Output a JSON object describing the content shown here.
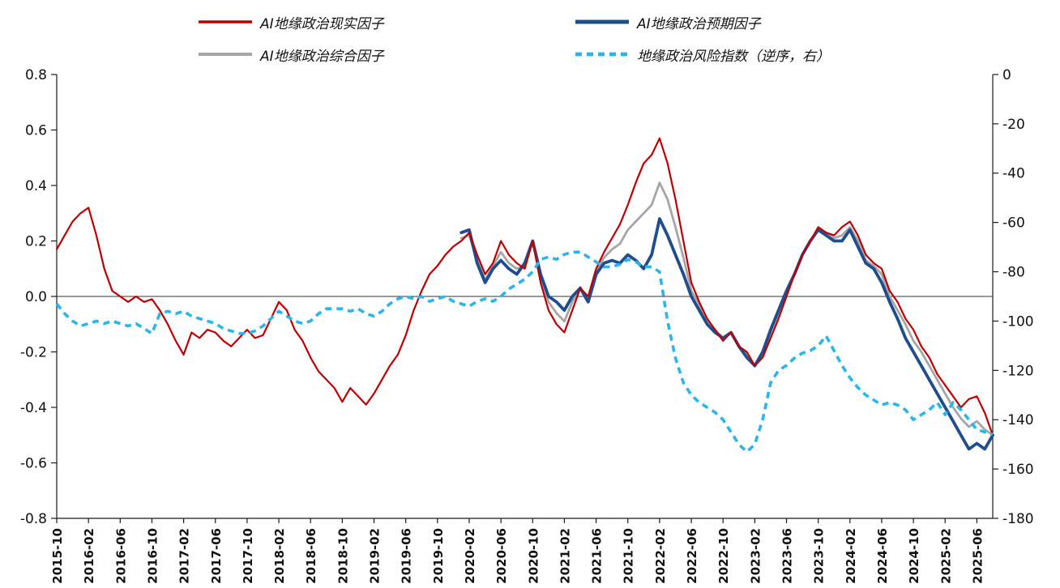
{
  "chart_data": {
    "type": "line",
    "title": "",
    "legend_position": "top",
    "grid": false,
    "legend_rows": [
      [
        0,
        1
      ],
      [
        2,
        3
      ]
    ],
    "x": [
      "2015-10",
      "2015-11",
      "2015-12",
      "2016-01",
      "2016-02",
      "2016-03",
      "2016-04",
      "2016-05",
      "2016-06",
      "2016-07",
      "2016-08",
      "2016-09",
      "2016-10",
      "2016-11",
      "2016-12",
      "2017-01",
      "2017-02",
      "2017-03",
      "2017-04",
      "2017-05",
      "2017-06",
      "2017-07",
      "2017-08",
      "2017-09",
      "2017-10",
      "2017-11",
      "2017-12",
      "2018-01",
      "2018-02",
      "2018-03",
      "2018-04",
      "2018-05",
      "2018-06",
      "2018-07",
      "2018-08",
      "2018-09",
      "2018-10",
      "2018-11",
      "2018-12",
      "2019-01",
      "2019-02",
      "2019-03",
      "2019-04",
      "2019-05",
      "2019-06",
      "2019-07",
      "2019-08",
      "2019-09",
      "2019-10",
      "2019-11",
      "2019-12",
      "2020-01",
      "2020-02",
      "2020-03",
      "2020-04",
      "2020-05",
      "2020-06",
      "2020-07",
      "2020-08",
      "2020-09",
      "2020-10",
      "2020-11",
      "2020-12",
      "2021-01",
      "2021-02",
      "2021-03",
      "2021-04",
      "2021-05",
      "2021-06",
      "2021-07",
      "2021-08",
      "2021-09",
      "2021-10",
      "2021-11",
      "2021-12",
      "2022-01",
      "2022-02",
      "2022-03",
      "2022-04",
      "2022-05",
      "2022-06",
      "2022-07",
      "2022-08",
      "2022-09",
      "2022-10",
      "2022-11",
      "2022-12",
      "2023-01",
      "2023-02",
      "2023-03",
      "2023-04",
      "2023-05",
      "2023-06",
      "2023-07",
      "2023-08",
      "2023-09",
      "2023-10",
      "2023-11",
      "2023-12",
      "2024-01",
      "2024-02",
      "2024-03",
      "2024-04",
      "2024-05",
      "2024-06",
      "2024-07",
      "2024-08",
      "2024-09",
      "2024-10",
      "2024-11",
      "2024-12",
      "2025-01",
      "2025-02",
      "2025-03",
      "2025-04",
      "2025-05",
      "2025-06",
      "2025-07",
      "2025-08"
    ],
    "x_tick_labels": [
      "2015-10",
      "2016-02",
      "2016-06",
      "2016-10",
      "2017-02",
      "2017-06",
      "2017-10",
      "2018-02",
      "2018-06",
      "2018-10",
      "2019-02",
      "2019-06",
      "2019-10",
      "2020-02",
      "2020-06",
      "2020-10",
      "2021-02",
      "2021-06",
      "2021-10",
      "2022-02",
      "2022-06",
      "2022-10",
      "2023-02",
      "2023-06",
      "2023-10",
      "2024-02",
      "2024-06",
      "2024-10",
      "2025-02",
      "2025-06"
    ],
    "left_axis": {
      "min": -0.8,
      "max": 0.8,
      "tick_labels": [
        "0.8",
        "0.6",
        "0.4",
        "0.2",
        "0.0",
        "-0.2",
        "-0.4",
        "-0.6",
        "-0.8"
      ]
    },
    "right_axis": {
      "min": -180,
      "max": 0,
      "tick_labels": [
        "0",
        "-20",
        "-40",
        "-60",
        "-80",
        "-100",
        "-120",
        "-140",
        "-160",
        "-180"
      ]
    },
    "series": [
      {
        "name": "AI地缘政治现实因子",
        "axis": "left",
        "color": "#c00000",
        "width": 2.2,
        "dash": null,
        "values": [
          0.17,
          0.22,
          0.27,
          0.3,
          0.32,
          0.22,
          0.1,
          0.02,
          0.0,
          -0.02,
          0.0,
          -0.02,
          -0.01,
          -0.05,
          -0.1,
          -0.16,
          -0.21,
          -0.13,
          -0.15,
          -0.12,
          -0.13,
          -0.16,
          -0.18,
          -0.15,
          -0.12,
          -0.15,
          -0.14,
          -0.08,
          -0.02,
          -0.05,
          -0.12,
          -0.16,
          -0.22,
          -0.27,
          -0.3,
          -0.33,
          -0.38,
          -0.33,
          -0.36,
          -0.39,
          -0.35,
          -0.3,
          -0.25,
          -0.21,
          -0.14,
          -0.05,
          0.02,
          0.08,
          0.11,
          0.15,
          0.18,
          0.2,
          0.23,
          0.15,
          0.08,
          0.12,
          0.2,
          0.15,
          0.12,
          0.1,
          0.2,
          0.05,
          -0.05,
          -0.1,
          -0.13,
          -0.05,
          0.03,
          0.0,
          0.1,
          0.16,
          0.21,
          0.26,
          0.33,
          0.41,
          0.48,
          0.51,
          0.57,
          0.48,
          0.35,
          0.2,
          0.05,
          -0.02,
          -0.08,
          -0.12,
          -0.16,
          -0.13,
          -0.18,
          -0.2,
          -0.25,
          -0.22,
          -0.15,
          -0.08,
          0.0,
          0.08,
          0.15,
          0.2,
          0.25,
          0.23,
          0.22,
          0.25,
          0.27,
          0.22,
          0.15,
          0.12,
          0.1,
          0.02,
          -0.02,
          -0.08,
          -0.12,
          -0.18,
          -0.22,
          -0.28,
          -0.32,
          -0.36,
          -0.4,
          -0.37,
          -0.36,
          -0.42,
          -0.5
        ]
      },
      {
        "name": "AI地缘政治预期因子",
        "axis": "left",
        "color": "#1f4e8f",
        "width": 3.8,
        "dash": null,
        "values": [
          null,
          null,
          null,
          null,
          null,
          null,
          null,
          null,
          null,
          null,
          null,
          null,
          null,
          null,
          null,
          null,
          null,
          null,
          null,
          null,
          null,
          null,
          null,
          null,
          null,
          null,
          null,
          null,
          null,
          null,
          null,
          null,
          null,
          null,
          null,
          null,
          null,
          null,
          null,
          null,
          null,
          null,
          null,
          null,
          null,
          null,
          null,
          null,
          null,
          null,
          null,
          0.23,
          0.24,
          0.12,
          0.05,
          0.1,
          0.13,
          0.1,
          0.08,
          0.12,
          0.2,
          0.08,
          0.0,
          -0.02,
          -0.05,
          0.0,
          0.03,
          -0.02,
          0.08,
          0.12,
          0.13,
          0.12,
          0.15,
          0.13,
          0.1,
          0.15,
          0.28,
          0.22,
          0.15,
          0.08,
          0.0,
          -0.05,
          -0.1,
          -0.13,
          -0.15,
          -0.13,
          -0.18,
          -0.22,
          -0.25,
          -0.2,
          -0.12,
          -0.05,
          0.02,
          0.08,
          0.15,
          0.2,
          0.24,
          0.22,
          0.2,
          0.2,
          0.24,
          0.18,
          0.12,
          0.1,
          0.05,
          -0.02,
          -0.08,
          -0.15,
          -0.2,
          -0.25,
          -0.3,
          -0.35,
          -0.4,
          -0.45,
          -0.5,
          -0.55,
          -0.53,
          -0.55,
          -0.5
        ]
      },
      {
        "name": "AI地缘政治综合因子",
        "axis": "left",
        "color": "#a6a6a6",
        "width": 2.8,
        "dash": null,
        "values": [
          null,
          null,
          null,
          null,
          null,
          null,
          null,
          null,
          null,
          null,
          null,
          null,
          null,
          null,
          null,
          null,
          null,
          null,
          null,
          null,
          null,
          null,
          null,
          null,
          null,
          null,
          null,
          null,
          null,
          null,
          null,
          null,
          null,
          null,
          null,
          null,
          null,
          null,
          null,
          null,
          null,
          null,
          null,
          null,
          null,
          null,
          null,
          null,
          null,
          null,
          null,
          0.21,
          0.22,
          0.13,
          0.06,
          0.11,
          0.16,
          0.12,
          0.1,
          0.11,
          0.2,
          0.06,
          -0.02,
          -0.06,
          -0.09,
          -0.02,
          0.03,
          -0.01,
          0.09,
          0.14,
          0.17,
          0.19,
          0.24,
          0.27,
          0.3,
          0.33,
          0.41,
          0.35,
          0.25,
          0.14,
          0.02,
          -0.03,
          -0.09,
          -0.12,
          -0.15,
          -0.13,
          -0.18,
          -0.21,
          -0.25,
          -0.21,
          -0.13,
          -0.06,
          0.01,
          0.08,
          0.15,
          0.2,
          0.24,
          0.23,
          0.21,
          0.22,
          0.25,
          0.2,
          0.13,
          0.11,
          0.08,
          0.0,
          -0.05,
          -0.1,
          -0.16,
          -0.2,
          -0.25,
          -0.3,
          -0.35,
          -0.4,
          -0.44,
          -0.47,
          -0.45,
          -0.48,
          -0.5
        ]
      },
      {
        "name": "地缘政治风险指数（逆序，右）",
        "axis": "right",
        "color": "#29b6ea",
        "width": 3.6,
        "dash": "8 6",
        "values": [
          -93,
          -97,
          -100,
          -102,
          -101,
          -100,
          -101,
          -100,
          -101,
          -102,
          -101,
          -103,
          -105,
          -97,
          -96,
          -97,
          -96,
          -98,
          -99,
          -100,
          -101,
          -103,
          -104,
          -105,
          -105,
          -104,
          -102,
          -99,
          -96,
          -98,
          -100,
          -101,
          -100,
          -97,
          -95,
          -95,
          -95,
          -96,
          -95,
          -97,
          -98,
          -96,
          -93,
          -91,
          -90,
          -91,
          -90,
          -92,
          -91,
          -90,
          -92,
          -93,
          -94,
          -92,
          -91,
          -92,
          -90,
          -87,
          -85,
          -83,
          -80,
          -75,
          -74,
          -75,
          -73,
          -72,
          -72,
          -74,
          -76,
          -78,
          -78,
          -77,
          -75,
          -76,
          -78,
          -78,
          -80,
          -100,
          -115,
          -125,
          -130,
          -133,
          -135,
          -137,
          -140,
          -145,
          -150,
          -153,
          -150,
          -140,
          -125,
          -120,
          -118,
          -115,
          -113,
          -112,
          -110,
          -106,
          -112,
          -118,
          -123,
          -127,
          -130,
          -132,
          -134,
          -133,
          -134,
          -136,
          -140,
          -138,
          -136,
          -133,
          -138,
          -133,
          -136,
          -140,
          -144,
          -145,
          -146
        ]
      }
    ]
  }
}
